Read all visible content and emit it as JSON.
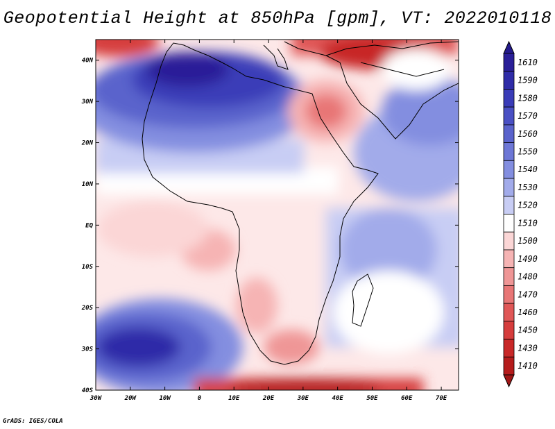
{
  "title": "Geopotential Height at 850hPa [gpm], VT: 2022010118",
  "credit": "GrADS: IGES/COLA",
  "map": {
    "variable": "Geopotential Height",
    "level": "850hPa",
    "units": "gpm",
    "valid_time": "2022010118",
    "region": "Africa",
    "lon_range": [
      -30,
      75
    ],
    "lat_range": [
      -40,
      45
    ],
    "lon_ticks": [
      {
        "value": -30,
        "label": "30W"
      },
      {
        "value": -20,
        "label": "20W"
      },
      {
        "value": -10,
        "label": "10W"
      },
      {
        "value": 0,
        "label": "0"
      },
      {
        "value": 10,
        "label": "10E"
      },
      {
        "value": 20,
        "label": "20E"
      },
      {
        "value": 30,
        "label": "30E"
      },
      {
        "value": 40,
        "label": "40E"
      },
      {
        "value": 50,
        "label": "50E"
      },
      {
        "value": 60,
        "label": "60E"
      },
      {
        "value": 70,
        "label": "70E"
      }
    ],
    "lat_ticks": [
      {
        "value": 40,
        "label": "40N"
      },
      {
        "value": 30,
        "label": "30N"
      },
      {
        "value": 20,
        "label": "20N"
      },
      {
        "value": 10,
        "label": "10N"
      },
      {
        "value": 0,
        "label": "EQ"
      },
      {
        "value": -10,
        "label": "10S"
      },
      {
        "value": -20,
        "label": "20S"
      },
      {
        "value": -30,
        "label": "30S"
      },
      {
        "value": -40,
        "label": "40S"
      }
    ]
  },
  "colorbar": {
    "levels": [
      {
        "label": "1610",
        "color": "#2a1f98"
      },
      {
        "label": "1590",
        "color": "#2f2ca8"
      },
      {
        "label": "1580",
        "color": "#3a3cb8"
      },
      {
        "label": "1570",
        "color": "#4a50c4"
      },
      {
        "label": "1560",
        "color": "#5a63cc"
      },
      {
        "label": "1550",
        "color": "#6d77d6"
      },
      {
        "label": "1540",
        "color": "#838ee0"
      },
      {
        "label": "1530",
        "color": "#a2abea"
      },
      {
        "label": "1520",
        "color": "#c8cdf4"
      },
      {
        "label": "1510",
        "color": "#ffffff"
      },
      {
        "label": "1500",
        "color": "#fbd6d6"
      },
      {
        "label": "1490",
        "color": "#f6b4b4"
      },
      {
        "label": "1480",
        "color": "#ef9696"
      },
      {
        "label": "1470",
        "color": "#e87676"
      },
      {
        "label": "1460",
        "color": "#e05757"
      },
      {
        "label": "1450",
        "color": "#d63d3d"
      },
      {
        "label": "1430",
        "color": "#c82828"
      },
      {
        "label": "1410",
        "color": "#b51c1c"
      }
    ],
    "top_color": "#241a8c",
    "bottom_color": "#a01616"
  }
}
